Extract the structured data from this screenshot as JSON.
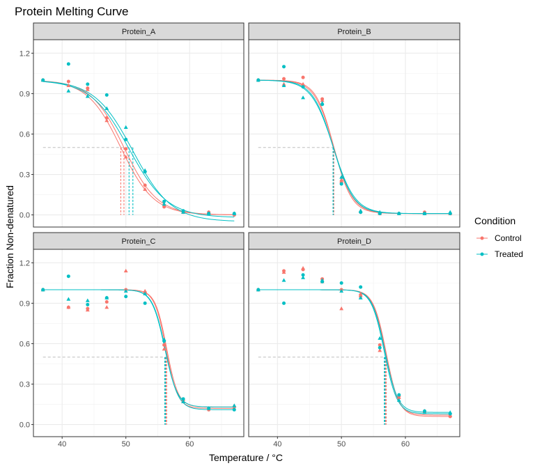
{
  "chart_data": {
    "type": "scatter",
    "title": "Protein Melting Curve",
    "xlabel": "Temperature / °C",
    "ylabel": "Fraction Non-denatured",
    "xlim": [
      35.5,
      68.5
    ],
    "ylim": [
      -0.09,
      1.3
    ],
    "x_ticks": [
      40,
      50,
      60
    ],
    "y_ticks": [
      0.0,
      0.3,
      0.6,
      0.9,
      1.2
    ],
    "y_tick_labels": [
      "0.0",
      "0.3",
      "0.6",
      "0.9",
      "1.2"
    ],
    "grid": true,
    "reference_y": 0.5,
    "colors": {
      "Control": "#F8766D",
      "Treated": "#00BFC4"
    },
    "legend": {
      "title": "Condition",
      "position": "right",
      "entries": [
        "Control",
        "Treated"
      ]
    },
    "marker_shapes": [
      "circle",
      "triangle"
    ],
    "x_values": [
      37,
      41,
      44,
      47,
      50,
      53,
      56,
      59,
      63,
      67
    ],
    "panels": [
      {
        "name": "Protein_A",
        "series": [
          {
            "condition": "Control",
            "shape": "circle",
            "y": [
              1.0,
              0.99,
              0.94,
              0.72,
              0.49,
              0.22,
              0.06,
              0.02,
              0.02,
              0.0
            ],
            "fit": {
              "Tm": 49.7,
              "slope": 2.6,
              "bottom": 0.0
            }
          },
          {
            "condition": "Control",
            "shape": "triangle",
            "y": [
              1.0,
              0.96,
              0.93,
              0.7,
              0.43,
              0.19,
              0.08,
              0.02,
              0.02,
              0.01
            ],
            "fit": {
              "Tm": 49.2,
              "slope": 2.6,
              "bottom": 0.0
            }
          },
          {
            "condition": "Treated",
            "shape": "circle",
            "y": [
              1.0,
              1.12,
              0.97,
              0.89,
              0.56,
              0.32,
              0.1,
              0.03,
              0.01,
              0.01
            ],
            "fit": {
              "Tm": 51.1,
              "slope": 3.0,
              "bottom": -0.05
            }
          },
          {
            "condition": "Treated",
            "shape": "triangle",
            "y": [
              1.0,
              0.92,
              0.88,
              0.79,
              0.65,
              0.33,
              0.08,
              0.02,
              0.01,
              0.01
            ],
            "fit": {
              "Tm": 50.5,
              "slope": 3.0,
              "bottom": -0.02
            }
          }
        ]
      },
      {
        "name": "Protein_B",
        "series": [
          {
            "condition": "Control",
            "shape": "circle",
            "y": [
              1.0,
              1.01,
              1.02,
              0.86,
              0.24,
              0.02,
              0.01,
              0.01,
              0.02,
              0.01
            ],
            "fit": {
              "Tm": 48.8,
              "slope": 1.5,
              "bottom": 0.01
            }
          },
          {
            "condition": "Control",
            "shape": "triangle",
            "y": [
              1.0,
              0.97,
              0.97,
              0.85,
              0.26,
              0.03,
              0.01,
              0.01,
              0.01,
              0.01
            ],
            "fit": {
              "Tm": 48.8,
              "slope": 1.4,
              "bottom": 0.01
            }
          },
          {
            "condition": "Treated",
            "shape": "circle",
            "y": [
              1.0,
              1.1,
              0.95,
              0.82,
              0.23,
              0.02,
              0.01,
              0.01,
              0.01,
              0.01
            ],
            "fit": {
              "Tm": 48.7,
              "slope": 1.6,
              "bottom": 0.01
            }
          },
          {
            "condition": "Treated",
            "shape": "triangle",
            "y": [
              1.0,
              0.96,
              0.87,
              0.83,
              0.28,
              0.03,
              0.02,
              0.01,
              0.01,
              0.02
            ],
            "fit": {
              "Tm": 48.7,
              "slope": 1.7,
              "bottom": 0.01
            }
          }
        ]
      },
      {
        "name": "Protein_C",
        "series": [
          {
            "condition": "Control",
            "shape": "circle",
            "y": [
              1.0,
              0.87,
              0.86,
              0.91,
              1.0,
              0.98,
              0.59,
              0.18,
              0.11,
              0.13
            ],
            "fit": {
              "Tm": 56.4,
              "slope": 0.9,
              "bottom": 0.13
            }
          },
          {
            "condition": "Control",
            "shape": "triangle",
            "y": [
              1.0,
              0.87,
              0.85,
              0.87,
              1.14,
              0.99,
              0.56,
              0.17,
              0.12,
              0.14
            ],
            "fit": {
              "Tm": 56.3,
              "slope": 0.9,
              "bottom": 0.12
            }
          },
          {
            "condition": "Treated",
            "shape": "circle",
            "y": [
              1.0,
              1.1,
              0.89,
              0.94,
              0.95,
              0.9,
              0.62,
              0.19,
              0.12,
              0.11
            ],
            "fit": {
              "Tm": 56.2,
              "slope": 1.0,
              "bottom": 0.11
            }
          },
          {
            "condition": "Treated",
            "shape": "triangle",
            "y": [
              1.0,
              0.93,
              0.92,
              0.94,
              0.99,
              0.97,
              0.63,
              0.17,
              0.12,
              0.14
            ],
            "fit": {
              "Tm": 56.1,
              "slope": 1.0,
              "bottom": 0.13
            }
          }
        ]
      },
      {
        "name": "Protein_D",
        "series": [
          {
            "condition": "Control",
            "shape": "circle",
            "y": [
              1.0,
              1.14,
              1.15,
              1.08,
              1.0,
              0.95,
              0.59,
              0.21,
              0.09,
              0.06
            ],
            "fit": {
              "Tm": 57.0,
              "slope": 1.0,
              "bottom": 0.06
            }
          },
          {
            "condition": "Control",
            "shape": "triangle",
            "y": [
              1.0,
              1.13,
              1.16,
              1.06,
              0.86,
              0.97,
              0.55,
              0.2,
              0.1,
              0.07
            ],
            "fit": {
              "Tm": 56.9,
              "slope": 1.0,
              "bottom": 0.07
            }
          },
          {
            "condition": "Treated",
            "shape": "circle",
            "y": [
              1.0,
              0.9,
              1.11,
              1.06,
              1.05,
              1.02,
              0.57,
              0.22,
              0.1,
              0.08
            ],
            "fit": {
              "Tm": 56.8,
              "slope": 1.0,
              "bottom": 0.09
            }
          },
          {
            "condition": "Treated",
            "shape": "triangle",
            "y": [
              1.0,
              1.07,
              1.09,
              1.07,
              0.99,
              0.94,
              0.64,
              0.18,
              0.09,
              0.09
            ],
            "fit": {
              "Tm": 56.7,
              "slope": 1.0,
              "bottom": 0.08
            }
          }
        ]
      }
    ]
  }
}
